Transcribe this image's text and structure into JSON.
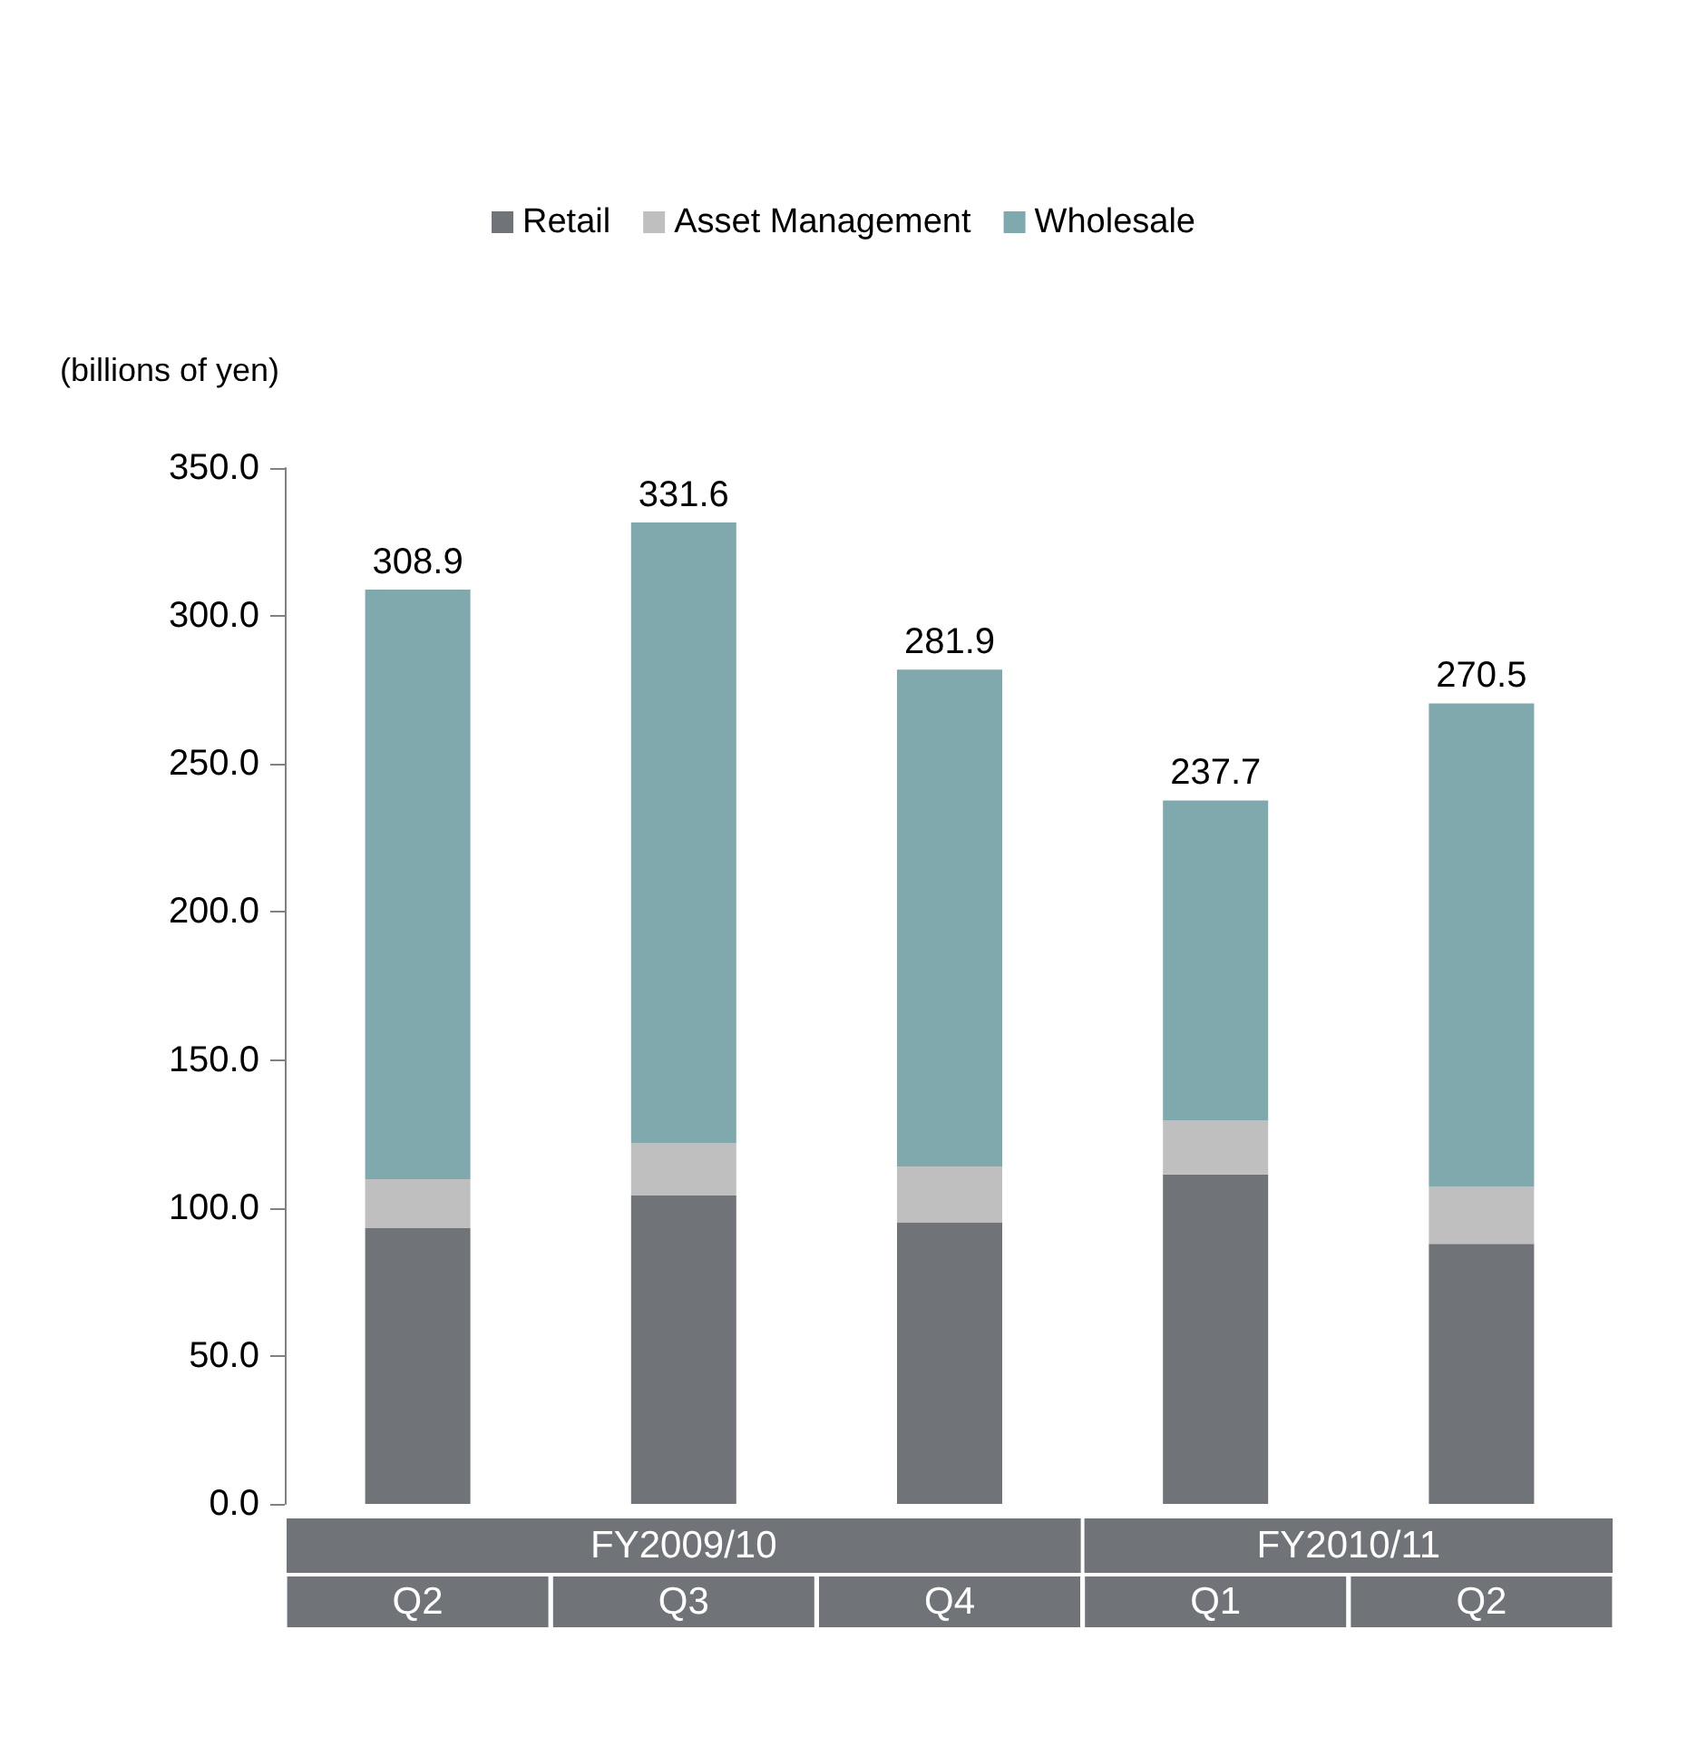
{
  "chart_data": {
    "type": "bar",
    "stacked": true,
    "ylabel": "(billions of yen)",
    "categories": [
      "Q2",
      "Q3",
      "Q4",
      "Q1",
      "Q2"
    ],
    "annotations": [
      "FY2009/10",
      "FY2010/11"
    ],
    "series": [
      {
        "name": "Retail",
        "color": "#707478",
        "values": [
          93.2,
          104.2,
          95.2,
          111.3,
          87.9
        ]
      },
      {
        "name": "Asset Management",
        "color": "#bfbfbf",
        "values": [
          16.5,
          17.6,
          18.7,
          18.2,
          19.2
        ]
      },
      {
        "name": "Wholesale",
        "color": "#80a9ad",
        "values": [
          199.2,
          209.8,
          168.0,
          108.2,
          163.4
        ]
      }
    ],
    "totals": [
      "308.9",
      "331.6",
      "281.9",
      "237.7",
      "270.5"
    ],
    "ylim": [
      0,
      350
    ],
    "yticks": [
      {
        "value": 0,
        "label": "0.0"
      },
      {
        "value": 50,
        "label": "50.0"
      },
      {
        "value": 100,
        "label": "100.0"
      },
      {
        "value": 150,
        "label": "150.0"
      },
      {
        "value": 200,
        "label": "200.0"
      },
      {
        "value": 250,
        "label": "250.0"
      },
      {
        "value": 300,
        "label": "300.0"
      },
      {
        "value": 350,
        "label": "350.0"
      }
    ],
    "grid": false,
    "legend": "top"
  }
}
